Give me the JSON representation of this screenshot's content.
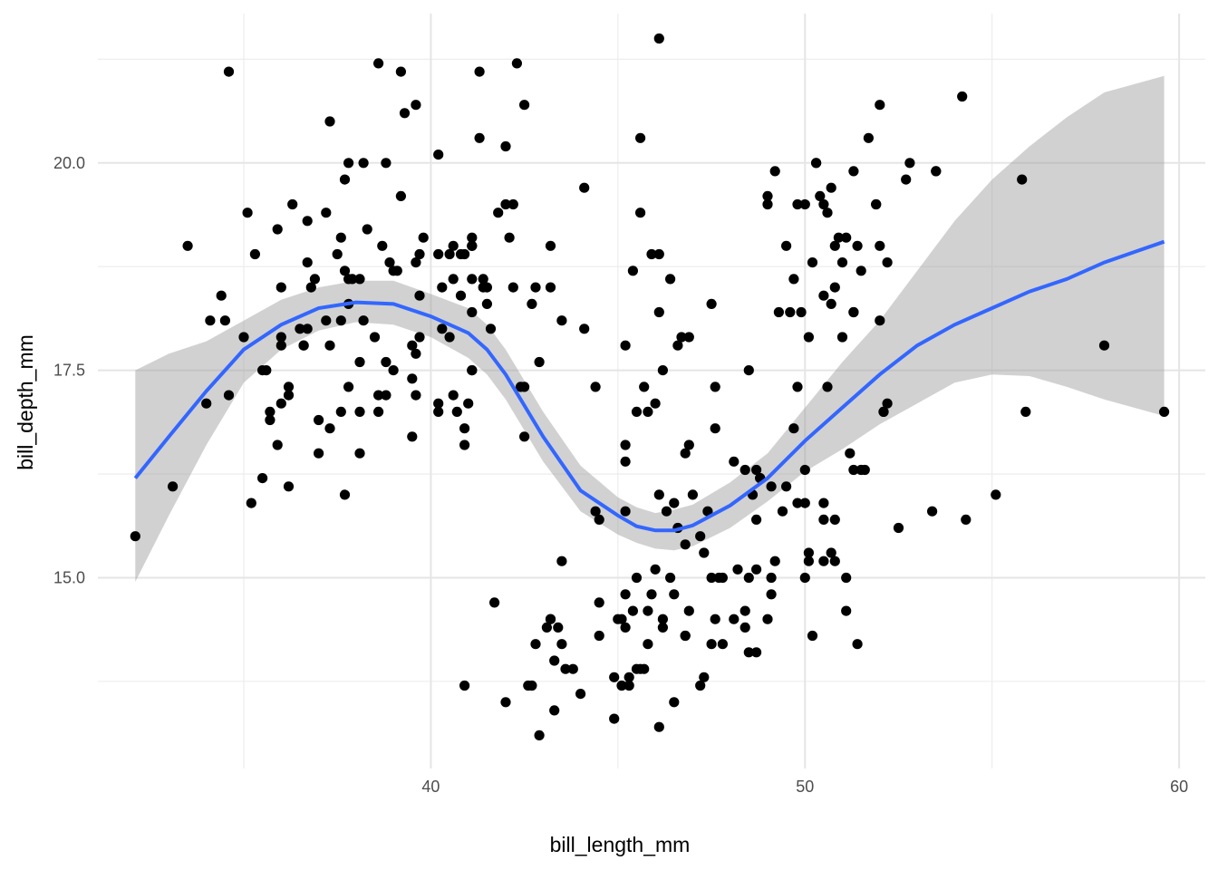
{
  "chart_data": {
    "type": "scatter",
    "xlabel": "bill_length_mm",
    "ylabel": "bill_depth_mm",
    "xlim": [
      31.1,
      60.7
    ],
    "ylim": [
      12.7,
      21.8
    ],
    "x_ticks": [
      40,
      50,
      60
    ],
    "x_tick_labels": [
      "40",
      "50",
      "60"
    ],
    "y_ticks": [
      15.0,
      17.5,
      20.0
    ],
    "y_tick_labels": [
      "15.0",
      "17.5",
      "20.0"
    ],
    "grid": true,
    "point_color": "#000000",
    "smooth_color": "#3366FF",
    "band_color": "#999999",
    "points": [
      [
        32.1,
        15.5
      ],
      [
        33.1,
        16.1
      ],
      [
        33.5,
        19.0
      ],
      [
        34.0,
        17.1
      ],
      [
        34.1,
        18.1
      ],
      [
        34.4,
        18.4
      ],
      [
        34.5,
        18.1
      ],
      [
        34.6,
        21.1
      ],
      [
        34.6,
        17.2
      ],
      [
        35.0,
        17.9
      ],
      [
        35.1,
        19.4
      ],
      [
        35.2,
        15.9
      ],
      [
        35.3,
        18.9
      ],
      [
        35.5,
        16.2
      ],
      [
        35.5,
        17.5
      ],
      [
        35.6,
        17.5
      ],
      [
        35.7,
        17.0
      ],
      [
        35.7,
        16.9
      ],
      [
        35.9,
        19.2
      ],
      [
        35.9,
        16.6
      ],
      [
        36.0,
        17.8
      ],
      [
        36.0,
        17.9
      ],
      [
        36.0,
        18.5
      ],
      [
        36.0,
        17.1
      ],
      [
        36.2,
        17.2
      ],
      [
        36.2,
        17.3
      ],
      [
        36.2,
        16.1
      ],
      [
        36.3,
        19.5
      ],
      [
        36.5,
        18.0
      ],
      [
        36.6,
        17.8
      ],
      [
        36.6,
        17.8
      ],
      [
        36.7,
        18.8
      ],
      [
        36.7,
        19.3
      ],
      [
        36.7,
        18.0
      ],
      [
        36.8,
        18.5
      ],
      [
        36.9,
        18.6
      ],
      [
        37.0,
        16.9
      ],
      [
        37.0,
        16.5
      ],
      [
        37.2,
        18.1
      ],
      [
        37.2,
        19.4
      ],
      [
        37.3,
        17.8
      ],
      [
        37.3,
        16.8
      ],
      [
        37.3,
        20.5
      ],
      [
        37.5,
        18.9
      ],
      [
        37.6,
        18.1
      ],
      [
        37.6,
        19.1
      ],
      [
        37.6,
        17.0
      ],
      [
        37.7,
        18.7
      ],
      [
        37.7,
        19.8
      ],
      [
        37.7,
        16.0
      ],
      [
        37.8,
        17.3
      ],
      [
        37.8,
        18.3
      ],
      [
        37.8,
        20.0
      ],
      [
        37.9,
        18.6
      ],
      [
        38.1,
        18.6
      ],
      [
        38.1,
        17.6
      ],
      [
        38.1,
        17.0
      ],
      [
        38.1,
        16.5
      ],
      [
        38.2,
        20.0
      ],
      [
        38.2,
        18.1
      ],
      [
        38.3,
        19.2
      ],
      [
        38.5,
        17.9
      ],
      [
        38.6,
        21.2
      ],
      [
        38.6,
        17.2
      ],
      [
        38.6,
        17.0
      ],
      [
        38.7,
        19.0
      ],
      [
        38.8,
        20.0
      ],
      [
        38.8,
        17.6
      ],
      [
        38.8,
        17.2
      ],
      [
        38.9,
        18.8
      ],
      [
        39.0,
        18.7
      ],
      [
        39.0,
        17.5
      ],
      [
        39.1,
        18.7
      ],
      [
        39.2,
        19.6
      ],
      [
        39.2,
        21.1
      ],
      [
        39.3,
        20.6
      ],
      [
        39.5,
        16.7
      ],
      [
        39.5,
        17.4
      ],
      [
        39.5,
        17.8
      ],
      [
        39.6,
        18.8
      ],
      [
        39.6,
        20.7
      ],
      [
        39.6,
        17.7
      ],
      [
        39.6,
        17.2
      ],
      [
        39.7,
        18.4
      ],
      [
        39.7,
        18.9
      ],
      [
        39.7,
        17.9
      ],
      [
        39.8,
        19.1
      ],
      [
        40.2,
        18.9
      ],
      [
        40.2,
        17.0
      ],
      [
        40.2,
        20.1
      ],
      [
        40.2,
        17.1
      ],
      [
        40.3,
        18.0
      ],
      [
        40.3,
        18.5
      ],
      [
        40.5,
        18.9
      ],
      [
        40.5,
        17.9
      ],
      [
        40.6,
        18.6
      ],
      [
        40.6,
        19.0
      ],
      [
        40.6,
        17.2
      ],
      [
        40.7,
        17.0
      ],
      [
        40.8,
        18.4
      ],
      [
        40.8,
        18.9
      ],
      [
        40.9,
        16.8
      ],
      [
        40.9,
        18.9
      ],
      [
        40.9,
        16.6
      ],
      [
        41.0,
        17.1
      ],
      [
        41.1,
        18.2
      ],
      [
        41.1,
        19.1
      ],
      [
        41.1,
        18.6
      ],
      [
        41.1,
        19.0
      ],
      [
        41.1,
        17.5
      ],
      [
        41.3,
        20.3
      ],
      [
        41.3,
        21.1
      ],
      [
        41.4,
        18.5
      ],
      [
        41.4,
        18.6
      ],
      [
        41.5,
        18.3
      ],
      [
        41.5,
        18.5
      ],
      [
        41.6,
        18.0
      ],
      [
        41.1,
        17.5
      ],
      [
        41.8,
        19.4
      ],
      [
        42.0,
        20.2
      ],
      [
        42.1,
        19.1
      ],
      [
        42.2,
        18.5
      ],
      [
        42.2,
        19.5
      ],
      [
        42.3,
        21.2
      ],
      [
        42.4,
        17.3
      ],
      [
        42.5,
        20.7
      ],
      [
        42.5,
        16.7
      ],
      [
        42.7,
        18.3
      ],
      [
        42.8,
        18.5
      ],
      [
        42.9,
        17.6
      ],
      [
        43.2,
        18.5
      ],
      [
        43.2,
        19.0
      ],
      [
        43.5,
        18.1
      ],
      [
        44.1,
        18.0
      ],
      [
        44.1,
        19.7
      ],
      [
        44.4,
        17.3
      ],
      [
        42.0,
        19.5
      ],
      [
        41.1,
        19.0
      ],
      [
        42.5,
        17.3
      ],
      [
        37.8,
        18.6
      ],
      [
        46.1,
        21.5
      ],
      [
        45.6,
        20.3
      ],
      [
        45.6,
        19.4
      ],
      [
        45.9,
        18.9
      ],
      [
        46.1,
        18.9
      ],
      [
        46.4,
        18.6
      ],
      [
        46.9,
        17.9
      ],
      [
        46.7,
        17.9
      ],
      [
        46.6,
        17.8
      ],
      [
        46.2,
        17.5
      ],
      [
        46.1,
        18.2
      ],
      [
        47.5,
        18.3
      ],
      [
        47.6,
        16.8
      ],
      [
        47.6,
        17.3
      ],
      [
        48.1,
        16.4
      ],
      [
        48.5,
        17.5
      ],
      [
        48.7,
        16.3
      ],
      [
        49.0,
        19.6
      ],
      [
        49.0,
        19.5
      ],
      [
        49.2,
        19.9
      ],
      [
        49.5,
        19.0
      ],
      [
        49.6,
        18.2
      ],
      [
        49.7,
        18.6
      ],
      [
        50.0,
        19.5
      ],
      [
        50.2,
        18.8
      ],
      [
        50.3,
        20.0
      ],
      [
        50.4,
        19.6
      ],
      [
        50.5,
        19.5
      ],
      [
        50.6,
        19.4
      ],
      [
        50.7,
        19.7
      ],
      [
        50.8,
        19.0
      ],
      [
        51.0,
        18.8
      ],
      [
        51.1,
        19.1
      ],
      [
        51.3,
        19.9
      ],
      [
        51.3,
        18.2
      ],
      [
        51.4,
        19.0
      ],
      [
        51.5,
        18.7
      ],
      [
        51.9,
        19.5
      ],
      [
        52.0,
        18.1
      ],
      [
        52.0,
        19.0
      ],
      [
        52.2,
        18.8
      ],
      [
        52.7,
        19.8
      ],
      [
        52.8,
        20.0
      ],
      [
        53.5,
        19.9
      ],
      [
        54.2,
        20.8
      ],
      [
        55.8,
        19.8
      ],
      [
        58.0,
        17.8
      ],
      [
        59.6,
        17.0
      ],
      [
        51.7,
        20.3
      ],
      [
        52.0,
        20.7
      ],
      [
        50.9,
        19.1
      ],
      [
        50.5,
        18.4
      ],
      [
        50.1,
        17.9
      ],
      [
        49.8,
        17.3
      ],
      [
        49.7,
        16.8
      ],
      [
        50.6,
        17.3
      ],
      [
        51.0,
        17.9
      ],
      [
        51.3,
        18.2
      ],
      [
        50.8,
        18.5
      ],
      [
        51.5,
        16.3
      ],
      [
        51.3,
        16.3
      ],
      [
        51.2,
        16.5
      ],
      [
        52.1,
        17.0
      ],
      [
        52.2,
        17.1
      ],
      [
        49.3,
        18.2
      ],
      [
        49.9,
        18.2
      ],
      [
        49.8,
        19.5
      ],
      [
        50.7,
        18.3
      ],
      [
        45.2,
        17.8
      ],
      [
        45.2,
        16.6
      ],
      [
        45.2,
        16.4
      ],
      [
        45.4,
        18.7
      ],
      [
        45.5,
        17.0
      ],
      [
        45.7,
        17.3
      ],
      [
        45.8,
        17.0
      ],
      [
        46.0,
        17.1
      ],
      [
        46.1,
        16.0
      ],
      [
        46.5,
        15.9
      ],
      [
        46.6,
        15.6
      ],
      [
        46.8,
        16.5
      ],
      [
        46.9,
        16.6
      ],
      [
        47.0,
        16.0
      ],
      [
        47.2,
        15.5
      ],
      [
        47.4,
        15.8
      ],
      [
        47.8,
        15.0
      ],
      [
        48.4,
        16.3
      ],
      [
        48.6,
        16.0
      ],
      [
        48.7,
        15.7
      ],
      [
        48.8,
        16.2
      ],
      [
        49.1,
        16.1
      ],
      [
        49.2,
        15.2
      ],
      [
        49.4,
        15.8
      ],
      [
        49.5,
        16.1
      ],
      [
        49.8,
        15.9
      ],
      [
        50.0,
        16.3
      ],
      [
        50.0,
        15.9
      ],
      [
        50.1,
        15.2
      ],
      [
        50.1,
        15.3
      ],
      [
        50.5,
        15.7
      ],
      [
        50.5,
        15.2
      ],
      [
        50.5,
        15.9
      ],
      [
        50.7,
        15.3
      ],
      [
        50.8,
        15.7
      ],
      [
        50.8,
        15.2
      ],
      [
        51.1,
        15.0
      ],
      [
        51.1,
        14.6
      ],
      [
        49.1,
        15.0
      ],
      [
        49.1,
        14.8
      ],
      [
        50.0,
        15.0
      ],
      [
        48.7,
        15.1
      ],
      [
        48.5,
        15.0
      ],
      [
        48.2,
        15.1
      ],
      [
        48.1,
        14.5
      ],
      [
        47.7,
        15.0
      ],
      [
        47.5,
        15.0
      ],
      [
        47.3,
        15.3
      ],
      [
        47.2,
        13.7
      ],
      [
        47.3,
        13.8
      ],
      [
        47.5,
        14.2
      ],
      [
        47.6,
        14.5
      ],
      [
        47.8,
        14.2
      ],
      [
        46.9,
        14.6
      ],
      [
        46.8,
        14.3
      ],
      [
        46.8,
        15.4
      ],
      [
        46.5,
        14.8
      ],
      [
        46.4,
        15.0
      ],
      [
        46.3,
        15.8
      ],
      [
        46.2,
        14.5
      ],
      [
        46.2,
        14.4
      ],
      [
        46.1,
        13.2
      ],
      [
        46.0,
        15.1
      ],
      [
        45.9,
        14.8
      ],
      [
        45.8,
        14.6
      ],
      [
        45.8,
        14.2
      ],
      [
        45.7,
        13.9
      ],
      [
        45.6,
        13.9
      ],
      [
        45.5,
        15.0
      ],
      [
        45.5,
        13.9
      ],
      [
        45.4,
        14.6
      ],
      [
        45.3,
        13.8
      ],
      [
        45.3,
        13.7
      ],
      [
        45.2,
        14.8
      ],
      [
        45.2,
        15.8
      ],
      [
        45.2,
        14.4
      ],
      [
        45.1,
        14.5
      ],
      [
        45.1,
        13.7
      ],
      [
        45.0,
        14.5
      ],
      [
        44.9,
        13.3
      ],
      [
        44.9,
        13.8
      ],
      [
        44.5,
        14.7
      ],
      [
        44.5,
        14.3
      ],
      [
        44.5,
        15.7
      ],
      [
        44.4,
        15.8
      ],
      [
        44.0,
        13.6
      ],
      [
        43.8,
        13.9
      ],
      [
        43.6,
        13.9
      ],
      [
        43.5,
        14.2
      ],
      [
        43.5,
        15.2
      ],
      [
        43.4,
        14.4
      ],
      [
        43.3,
        14.0
      ],
      [
        43.3,
        13.4
      ],
      [
        43.2,
        14.5
      ],
      [
        43.1,
        14.4
      ],
      [
        43.2,
        14.5
      ],
      [
        42.9,
        13.1
      ],
      [
        42.8,
        14.2
      ],
      [
        42.7,
        13.7
      ],
      [
        42.6,
        13.7
      ],
      [
        42.0,
        13.5
      ],
      [
        41.7,
        14.7
      ],
      [
        40.9,
        13.7
      ],
      [
        46.5,
        13.5
      ],
      [
        46.8,
        14.3
      ],
      [
        48.5,
        14.1
      ],
      [
        48.7,
        14.1
      ],
      [
        48.4,
        14.4
      ],
      [
        48.4,
        14.6
      ],
      [
        49.0,
        14.5
      ],
      [
        50.2,
        14.3
      ],
      [
        51.4,
        14.2
      ],
      [
        48.8,
        16.2
      ],
      [
        51.6,
        16.3
      ],
      [
        52.5,
        15.6
      ],
      [
        53.4,
        15.8
      ],
      [
        54.3,
        15.7
      ],
      [
        55.1,
        16.0
      ],
      [
        55.9,
        17.0
      ],
      [
        52.1,
        17.0
      ],
      [
        53.5,
        19.9
      ],
      [
        50.3,
        20.0
      ],
      [
        51.9,
        19.5
      ]
    ],
    "smooth": [
      [
        32.1,
        16.2
      ],
      [
        33.0,
        16.7
      ],
      [
        34.0,
        17.25
      ],
      [
        35.0,
        17.75
      ],
      [
        36.0,
        18.05
      ],
      [
        37.0,
        18.25
      ],
      [
        38.0,
        18.32
      ],
      [
        39.0,
        18.3
      ],
      [
        40.0,
        18.15
      ],
      [
        41.0,
        17.95
      ],
      [
        41.5,
        17.75
      ],
      [
        42.0,
        17.45
      ],
      [
        43.0,
        16.7
      ],
      [
        44.0,
        16.05
      ],
      [
        45.0,
        15.75
      ],
      [
        45.5,
        15.62
      ],
      [
        46.0,
        15.57
      ],
      [
        46.5,
        15.57
      ],
      [
        47.0,
        15.63
      ],
      [
        48.0,
        15.87
      ],
      [
        49.0,
        16.2
      ],
      [
        50.0,
        16.65
      ],
      [
        51.0,
        17.05
      ],
      [
        52.0,
        17.45
      ],
      [
        53.0,
        17.8
      ],
      [
        54.0,
        18.05
      ],
      [
        55.0,
        18.25
      ],
      [
        56.0,
        18.45
      ],
      [
        57.0,
        18.6
      ],
      [
        58.0,
        18.8
      ],
      [
        59.6,
        19.05
      ]
    ],
    "band_upper": [
      [
        32.1,
        17.5
      ],
      [
        33.0,
        17.7
      ],
      [
        34.0,
        17.85
      ],
      [
        35.0,
        18.1
      ],
      [
        36.0,
        18.35
      ],
      [
        37.0,
        18.5
      ],
      [
        38.0,
        18.58
      ],
      [
        39.0,
        18.58
      ],
      [
        40.0,
        18.42
      ],
      [
        41.0,
        18.25
      ],
      [
        41.5,
        18.05
      ],
      [
        42.0,
        17.75
      ],
      [
        43.0,
        17.0
      ],
      [
        44.0,
        16.35
      ],
      [
        45.0,
        15.97
      ],
      [
        45.5,
        15.85
      ],
      [
        46.0,
        15.78
      ],
      [
        46.5,
        15.82
      ],
      [
        47.0,
        15.88
      ],
      [
        48.0,
        16.15
      ],
      [
        49.0,
        16.5
      ],
      [
        50.0,
        17.05
      ],
      [
        51.0,
        17.6
      ],
      [
        52.0,
        18.1
      ],
      [
        53.0,
        18.7
      ],
      [
        54.0,
        19.3
      ],
      [
        55.0,
        19.8
      ],
      [
        56.0,
        20.2
      ],
      [
        57.0,
        20.55
      ],
      [
        58.0,
        20.85
      ],
      [
        59.6,
        21.05
      ]
    ],
    "band_lower": [
      [
        32.1,
        14.95
      ],
      [
        33.0,
        15.75
      ],
      [
        34.0,
        16.6
      ],
      [
        35.0,
        17.35
      ],
      [
        36.0,
        17.75
      ],
      [
        37.0,
        17.98
      ],
      [
        38.0,
        18.08
      ],
      [
        39.0,
        18.05
      ],
      [
        40.0,
        17.9
      ],
      [
        41.0,
        17.65
      ],
      [
        41.5,
        17.45
      ],
      [
        42.0,
        17.15
      ],
      [
        43.0,
        16.4
      ],
      [
        44.0,
        15.8
      ],
      [
        45.0,
        15.52
      ],
      [
        45.5,
        15.42
      ],
      [
        46.0,
        15.35
      ],
      [
        46.5,
        15.33
      ],
      [
        47.0,
        15.38
      ],
      [
        48.0,
        15.6
      ],
      [
        49.0,
        15.92
      ],
      [
        50.0,
        16.28
      ],
      [
        51.0,
        16.55
      ],
      [
        52.0,
        16.85
      ],
      [
        53.0,
        17.1
      ],
      [
        54.0,
        17.35
      ],
      [
        55.0,
        17.45
      ],
      [
        56.0,
        17.43
      ],
      [
        57.0,
        17.3
      ],
      [
        58.0,
        17.15
      ],
      [
        59.6,
        16.95
      ]
    ]
  }
}
